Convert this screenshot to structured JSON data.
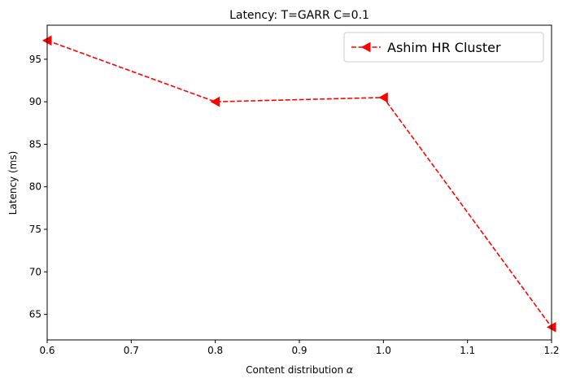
{
  "chart_data": {
    "type": "line",
    "title": "Latency: T=GARR C=0.1",
    "xlabel": "Content distribution",
    "xlabel_symbol": "α",
    "ylabel": "Latency (ms)",
    "xlim": [
      0.6,
      1.2
    ],
    "ylim": [
      62,
      99
    ],
    "xticks": [
      0.6,
      0.7,
      0.8,
      0.9,
      1.0,
      1.1,
      1.2
    ],
    "xtick_labels": [
      "0.6",
      "0.7",
      "0.8",
      "0.9",
      "1.0",
      "1.1",
      "1.2"
    ],
    "yticks": [
      65,
      70,
      75,
      80,
      85,
      90,
      95
    ],
    "ytick_labels": [
      "65",
      "70",
      "75",
      "80",
      "85",
      "90",
      "95"
    ],
    "grid": false,
    "legend_position": "upper right",
    "series": [
      {
        "name": "Ashim HR Cluster",
        "color": "#ff0000",
        "line_style": "dashed",
        "marker": "triangle-left",
        "x": [
          0.6,
          0.8,
          1.0,
          1.2
        ],
        "y": [
          97.2,
          90.0,
          90.5,
          63.5
        ]
      }
    ]
  }
}
